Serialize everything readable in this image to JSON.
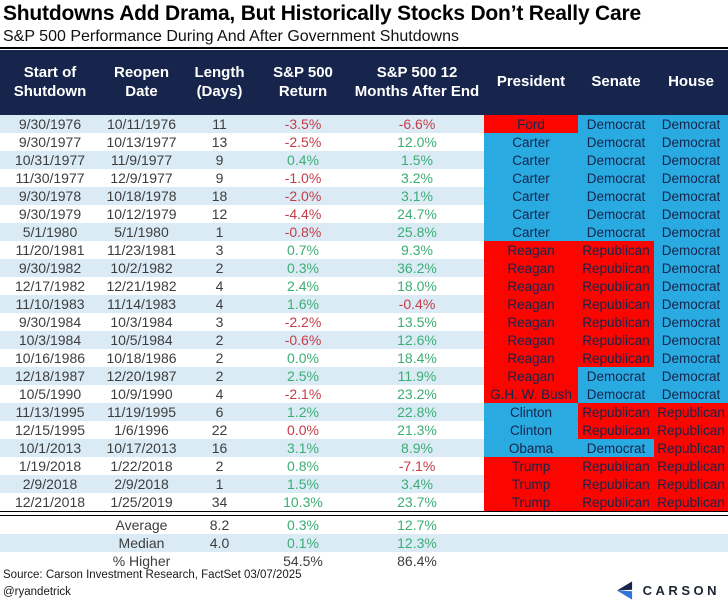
{
  "header": {
    "title": "Shutdowns Add Drama, But Historically Stocks Don’t Really Care",
    "subtitle": "S&P 500 Performance During And After Government Shutdowns"
  },
  "chart_data": {
    "type": "table",
    "title": "Shutdowns Add Drama, But Historically Stocks Don’t Really Care",
    "subtitle": "S&P 500 Performance During And After Government Shutdowns",
    "columns": [
      "Start of Shutdown",
      "Reopen Date",
      "Length (Days)",
      "S&P 500 Return",
      "S&P 500 12 Months After End",
      "President",
      "Senate",
      "House"
    ],
    "rows": [
      {
        "start": "9/30/1976",
        "reopen": "10/11/1976",
        "days": "11",
        "ret": "-3.5%",
        "ret_tone": "neg",
        "after": "-6.6%",
        "after_tone": "neg",
        "president": "Ford",
        "president_party": "R",
        "senate": "Democrat",
        "senate_party": "D",
        "house": "Democrat",
        "house_party": "D"
      },
      {
        "start": "9/30/1977",
        "reopen": "10/13/1977",
        "days": "13",
        "ret": "-2.5%",
        "ret_tone": "neg",
        "after": "12.0%",
        "after_tone": "pos",
        "president": "Carter",
        "president_party": "D",
        "senate": "Democrat",
        "senate_party": "D",
        "house": "Democrat",
        "house_party": "D"
      },
      {
        "start": "10/31/1977",
        "reopen": "11/9/1977",
        "days": "9",
        "ret": "0.4%",
        "ret_tone": "pos",
        "after": "1.5%",
        "after_tone": "pos",
        "president": "Carter",
        "president_party": "D",
        "senate": "Democrat",
        "senate_party": "D",
        "house": "Democrat",
        "house_party": "D"
      },
      {
        "start": "11/30/1977",
        "reopen": "12/9/1977",
        "days": "9",
        "ret": "-1.0%",
        "ret_tone": "neg",
        "after": "3.2%",
        "after_tone": "pos",
        "president": "Carter",
        "president_party": "D",
        "senate": "Democrat",
        "senate_party": "D",
        "house": "Democrat",
        "house_party": "D"
      },
      {
        "start": "9/30/1978",
        "reopen": "10/18/1978",
        "days": "18",
        "ret": "-2.0%",
        "ret_tone": "neg",
        "after": "3.1%",
        "after_tone": "pos",
        "president": "Carter",
        "president_party": "D",
        "senate": "Democrat",
        "senate_party": "D",
        "house": "Democrat",
        "house_party": "D"
      },
      {
        "start": "9/30/1979",
        "reopen": "10/12/1979",
        "days": "12",
        "ret": "-4.4%",
        "ret_tone": "neg",
        "after": "24.7%",
        "after_tone": "pos",
        "president": "Carter",
        "president_party": "D",
        "senate": "Democrat",
        "senate_party": "D",
        "house": "Democrat",
        "house_party": "D"
      },
      {
        "start": "5/1/1980",
        "reopen": "5/1/1980",
        "days": "1",
        "ret": "-0.8%",
        "ret_tone": "neg",
        "after": "25.8%",
        "after_tone": "pos",
        "president": "Carter",
        "president_party": "D",
        "senate": "Democrat",
        "senate_party": "D",
        "house": "Democrat",
        "house_party": "D"
      },
      {
        "start": "11/20/1981",
        "reopen": "11/23/1981",
        "days": "3",
        "ret": "0.7%",
        "ret_tone": "pos",
        "after": "9.3%",
        "after_tone": "pos",
        "president": "Reagan",
        "president_party": "R",
        "senate": "Republican",
        "senate_party": "R",
        "house": "Democrat",
        "house_party": "D"
      },
      {
        "start": "9/30/1982",
        "reopen": "10/2/1982",
        "days": "2",
        "ret": "0.3%",
        "ret_tone": "pos",
        "after": "36.2%",
        "after_tone": "pos",
        "president": "Reagan",
        "president_party": "R",
        "senate": "Republican",
        "senate_party": "R",
        "house": "Democrat",
        "house_party": "D"
      },
      {
        "start": "12/17/1982",
        "reopen": "12/21/1982",
        "days": "4",
        "ret": "2.4%",
        "ret_tone": "pos",
        "after": "18.0%",
        "after_tone": "pos",
        "president": "Reagan",
        "president_party": "R",
        "senate": "Republican",
        "senate_party": "R",
        "house": "Democrat",
        "house_party": "D"
      },
      {
        "start": "11/10/1983",
        "reopen": "11/14/1983",
        "days": "4",
        "ret": "1.6%",
        "ret_tone": "pos",
        "after": "-0.4%",
        "after_tone": "neg",
        "president": "Reagan",
        "president_party": "R",
        "senate": "Republican",
        "senate_party": "R",
        "house": "Democrat",
        "house_party": "D"
      },
      {
        "start": "9/30/1984",
        "reopen": "10/3/1984",
        "days": "3",
        "ret": "-2.2%",
        "ret_tone": "neg",
        "after": "13.5%",
        "after_tone": "pos",
        "president": "Reagan",
        "president_party": "R",
        "senate": "Republican",
        "senate_party": "R",
        "house": "Democrat",
        "house_party": "D"
      },
      {
        "start": "10/3/1984",
        "reopen": "10/5/1984",
        "days": "2",
        "ret": "-0.6%",
        "ret_tone": "neg",
        "after": "12.6%",
        "after_tone": "pos",
        "president": "Reagan",
        "president_party": "R",
        "senate": "Republican",
        "senate_party": "R",
        "house": "Democrat",
        "house_party": "D"
      },
      {
        "start": "10/16/1986",
        "reopen": "10/18/1986",
        "days": "2",
        "ret": "0.0%",
        "ret_tone": "pos",
        "after": "18.4%",
        "after_tone": "pos",
        "president": "Reagan",
        "president_party": "R",
        "senate": "Republican",
        "senate_party": "R",
        "house": "Democrat",
        "house_party": "D"
      },
      {
        "start": "12/18/1987",
        "reopen": "12/20/1987",
        "days": "2",
        "ret": "2.5%",
        "ret_tone": "pos",
        "after": "11.9%",
        "after_tone": "pos",
        "president": "Reagan",
        "president_party": "R",
        "senate": "Democrat",
        "senate_party": "D",
        "house": "Democrat",
        "house_party": "D"
      },
      {
        "start": "10/5/1990",
        "reopen": "10/9/1990",
        "days": "4",
        "ret": "-2.1%",
        "ret_tone": "neg",
        "after": "23.2%",
        "after_tone": "pos",
        "president": "G.H. W. Bush",
        "president_party": "R",
        "senate": "Democrat",
        "senate_party": "D",
        "house": "Democrat",
        "house_party": "D"
      },
      {
        "start": "11/13/1995",
        "reopen": "11/19/1995",
        "days": "6",
        "ret": "1.2%",
        "ret_tone": "pos",
        "after": "22.8%",
        "after_tone": "pos",
        "president": "Clinton",
        "president_party": "D",
        "senate": "Republican",
        "senate_party": "R",
        "house": "Republican",
        "house_party": "R"
      },
      {
        "start": "12/15/1995",
        "reopen": "1/6/1996",
        "days": "22",
        "ret": "0.0%",
        "ret_tone": "neg",
        "after": "21.3%",
        "after_tone": "pos",
        "president": "Clinton",
        "president_party": "D",
        "senate": "Republican",
        "senate_party": "R",
        "house": "Republican",
        "house_party": "R"
      },
      {
        "start": "10/1/2013",
        "reopen": "10/17/2013",
        "days": "16",
        "ret": "3.1%",
        "ret_tone": "pos",
        "after": "8.9%",
        "after_tone": "pos",
        "president": "Obama",
        "president_party": "D",
        "senate": "Democrat",
        "senate_party": "D",
        "house": "Republican",
        "house_party": "R"
      },
      {
        "start": "1/19/2018",
        "reopen": "1/22/2018",
        "days": "2",
        "ret": "0.8%",
        "ret_tone": "pos",
        "after": "-7.1%",
        "after_tone": "neg",
        "president": "Trump",
        "president_party": "R",
        "senate": "Republican",
        "senate_party": "R",
        "house": "Republican",
        "house_party": "R"
      },
      {
        "start": "2/9/2018",
        "reopen": "2/9/2018",
        "days": "1",
        "ret": "1.5%",
        "ret_tone": "pos",
        "after": "3.4%",
        "after_tone": "pos",
        "president": "Trump",
        "president_party": "R",
        "senate": "Republican",
        "senate_party": "R",
        "house": "Republican",
        "house_party": "R"
      },
      {
        "start": "12/21/2018",
        "reopen": "1/25/2019",
        "days": "34",
        "ret": "10.3%",
        "ret_tone": "pos",
        "after": "23.7%",
        "after_tone": "pos",
        "president": "Trump",
        "president_party": "R",
        "senate": "Republican",
        "senate_party": "R",
        "house": "Republican",
        "house_party": "R"
      }
    ],
    "summary": [
      {
        "label": "Average",
        "days": "8.2",
        "ret": "0.3%",
        "ret_tone": "pos",
        "after": "12.7%",
        "after_tone": "pos"
      },
      {
        "label": "Median",
        "days": "4.0",
        "ret": "0.1%",
        "ret_tone": "pos",
        "after": "12.3%",
        "after_tone": "pos"
      },
      {
        "label": "% Higher",
        "days": "",
        "ret": "54.5%",
        "ret_tone": "neutral",
        "after": "86.4%",
        "after_tone": "neutral"
      }
    ],
    "legend_position": "none",
    "grid": false,
    "party_colors": {
      "D": "#29ABE2",
      "R": "#FB0500"
    },
    "value_colors": {
      "pos": "#3BAE73",
      "neg": "#C43C46",
      "neutral": "#3D3D3D"
    },
    "header_bg": "#17254C",
    "band_bg": "#DAEBF6"
  },
  "footer": {
    "source": "Source: Carson Investment Research, FactSet 03/07/2025",
    "handle": "@ryandetrick",
    "logo_text": "CARSON"
  }
}
